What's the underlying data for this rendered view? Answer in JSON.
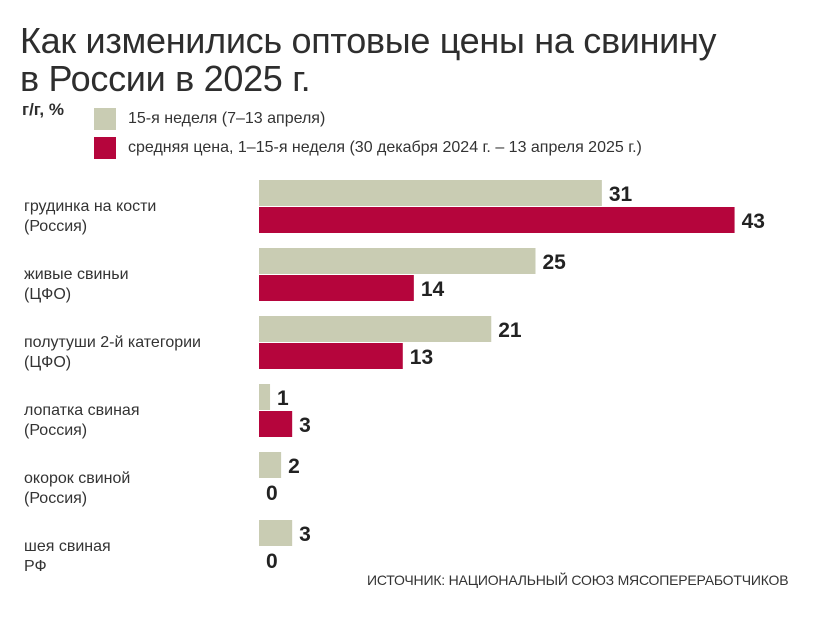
{
  "title_line1": "Как изменились оптовые цены на свинину",
  "title_line2": "в России в 2025 г.",
  "unit": "г/г, %",
  "source": "ИСТОЧНИК: НАЦИОНАЛЬНЫЙ СОЮЗ МЯСОПЕРЕРАБОТЧИКОВ",
  "colors": {
    "week15": "#c9ccb3",
    "average": "#b5053c"
  },
  "chart_data": {
    "type": "bar",
    "orientation": "horizontal",
    "title": "Как изменились оптовые цены на свинину в России в 2025 г.",
    "ylabel": "г/г, %",
    "xlim": [
      0,
      45
    ],
    "grid": false,
    "legend_position": "top-left",
    "categories": [
      {
        "line1": "грудинка на кости",
        "line2": "(Россия)"
      },
      {
        "line1": "живые свиньи",
        "line2": "(ЦФО)"
      },
      {
        "line1": "полутуши 2-й категории",
        "line2": "(ЦФО)"
      },
      {
        "line1": "лопатка свиная",
        "line2": "(Россия)"
      },
      {
        "line1": "окорок свиной",
        "line2": "(Россия)"
      },
      {
        "line1": "шея свиная",
        "line2": "РФ"
      }
    ],
    "series": [
      {
        "name": "15-я неделя (7–13 апреля)",
        "color": "#c9ccb3",
        "values": [
          31,
          25,
          21,
          1,
          2,
          3
        ]
      },
      {
        "name": "средняя цена, 1–15-я неделя (30 декабря 2024 г. – 13 апреля 2025 г.)",
        "color": "#b5053c",
        "values": [
          43,
          14,
          13,
          3,
          0,
          0
        ]
      }
    ]
  }
}
